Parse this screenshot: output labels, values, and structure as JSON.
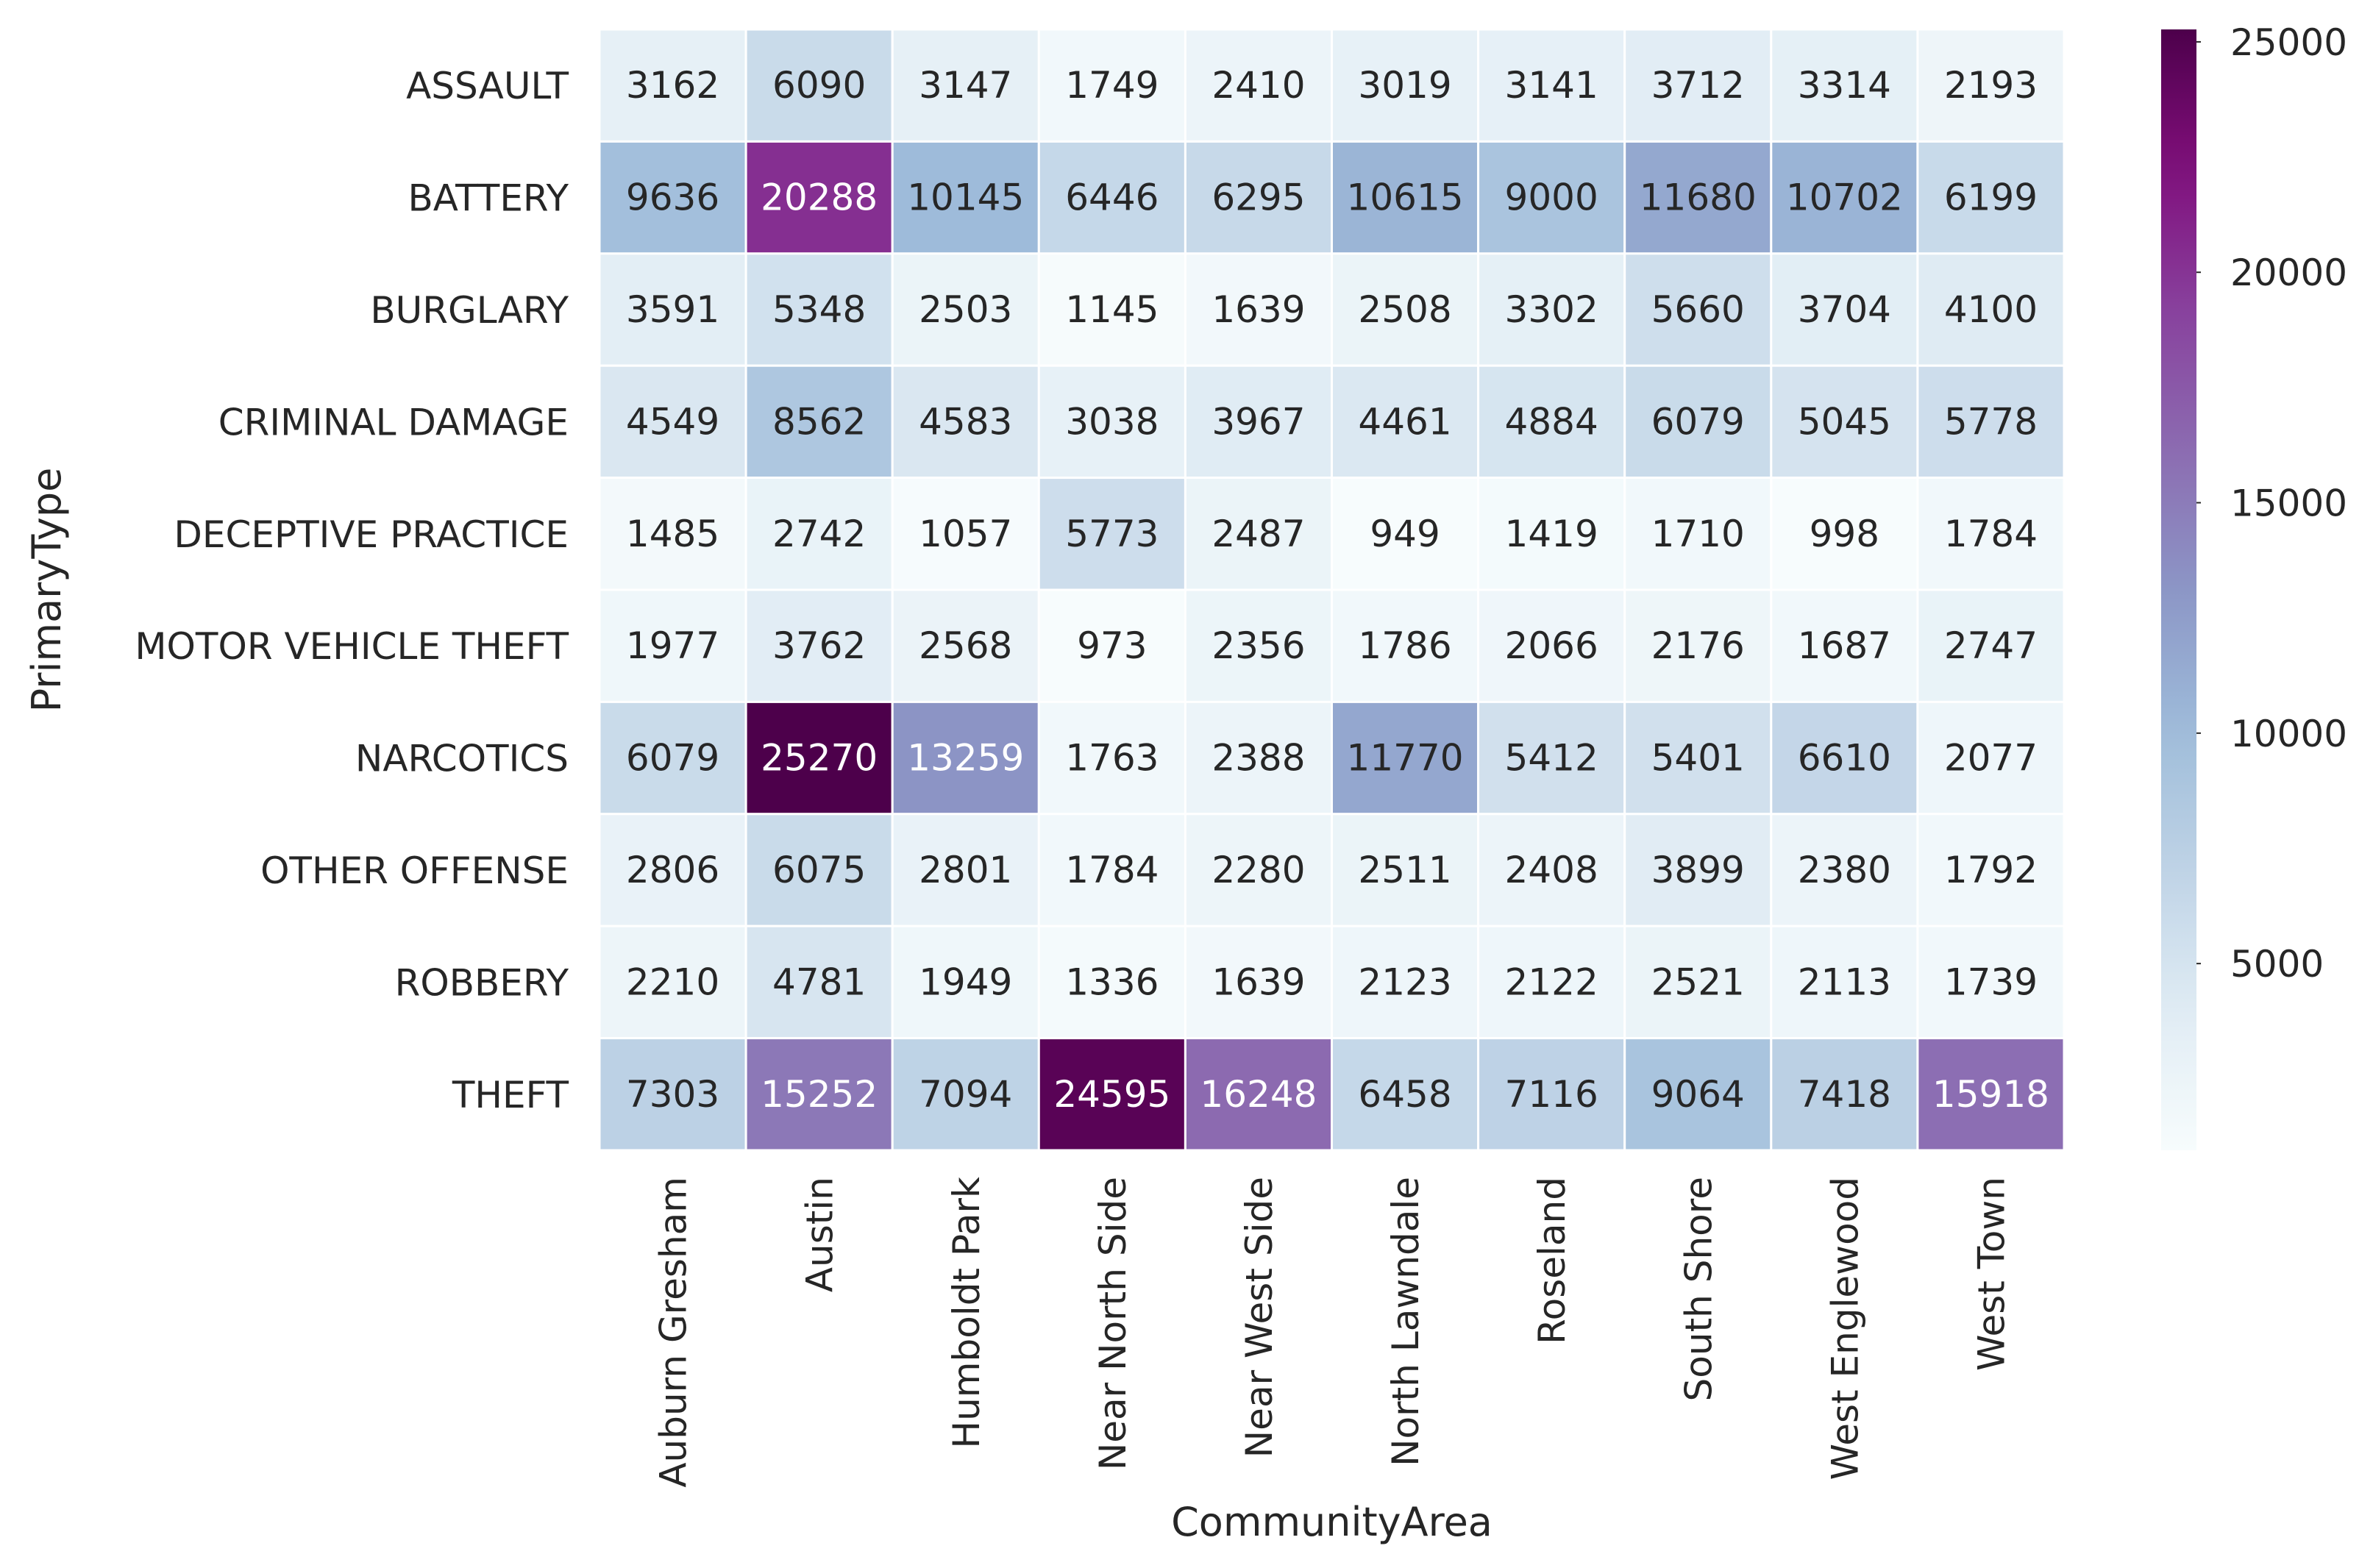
{
  "chart_data": {
    "type": "heatmap",
    "title": "",
    "xlabel": "CommunityArea",
    "ylabel": "PrimaryType",
    "colormap": "BuPu",
    "vmin": 949,
    "vmax": 25270,
    "colorbar_ticks": [
      5000,
      10000,
      15000,
      20000,
      25000
    ],
    "colorbar_tick_labels": [
      "5000",
      "10000",
      "15000",
      "20000",
      "25000"
    ],
    "columns": [
      "Auburn Gresham",
      "Austin",
      "Humboldt Park",
      "Near North Side",
      "Near West Side",
      "North Lawndale",
      "Roseland",
      "South Shore",
      "West Englewood",
      "West Town"
    ],
    "rows": [
      "ASSAULT",
      "BATTERY",
      "BURGLARY",
      "CRIMINAL DAMAGE",
      "DECEPTIVE PRACTICE",
      "MOTOR VEHICLE THEFT",
      "NARCOTICS",
      "OTHER OFFENSE",
      "ROBBERY",
      "THEFT"
    ],
    "values": [
      [
        3162,
        6090,
        3147,
        1749,
        2410,
        3019,
        3141,
        3712,
        3314,
        2193
      ],
      [
        9636,
        20288,
        10145,
        6446,
        6295,
        10615,
        9000,
        11680,
        10702,
        6199
      ],
      [
        3591,
        5348,
        2503,
        1145,
        1639,
        2508,
        3302,
        5660,
        3704,
        4100
      ],
      [
        4549,
        8562,
        4583,
        3038,
        3967,
        4461,
        4884,
        6079,
        5045,
        5778
      ],
      [
        1485,
        2742,
        1057,
        5773,
        2487,
        949,
        1419,
        1710,
        998,
        1784
      ],
      [
        1977,
        3762,
        2568,
        973,
        2356,
        1786,
        2066,
        2176,
        1687,
        2747
      ],
      [
        6079,
        25270,
        13259,
        1763,
        2388,
        11770,
        5412,
        5401,
        6610,
        2077
      ],
      [
        2806,
        6075,
        2801,
        1784,
        2280,
        2511,
        2408,
        3899,
        2380,
        1792
      ],
      [
        2210,
        4781,
        1949,
        1336,
        1639,
        2123,
        2122,
        2521,
        2113,
        1739
      ],
      [
        7303,
        15252,
        7094,
        24595,
        16248,
        6458,
        7116,
        9064,
        7418,
        15918
      ]
    ],
    "colors": {
      "low": "#f7fcfd",
      "high": "#4d004b",
      "text_dark": "#262626",
      "text_light": "#ffffff",
      "cell_border": "#ffffff"
    }
  }
}
